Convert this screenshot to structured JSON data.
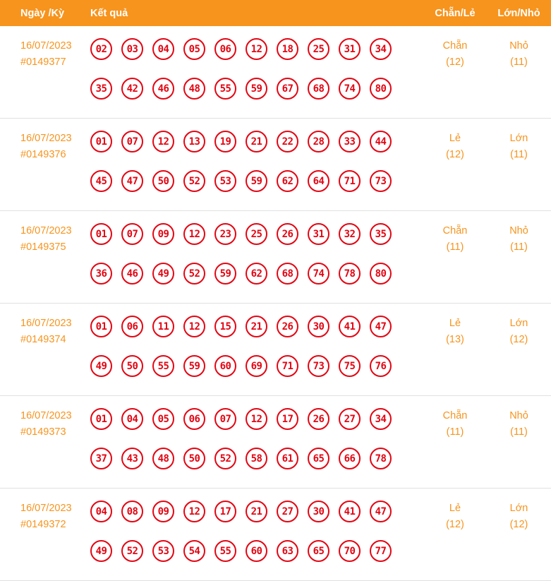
{
  "header": {
    "col_date": "Ngày /Kỳ",
    "col_result": "Kết quả",
    "col_parity": "Chẵn/Lẻ",
    "col_size": "Lớn/Nhỏ"
  },
  "colors": {
    "header_bg": "#F7941D",
    "accent_orange": "#F7941D",
    "ball_red": "#E30613",
    "separator": "#E0E0E0"
  },
  "rows": [
    {
      "date": "16/07/2023",
      "draw_id": "#0149377",
      "numbers_line1": [
        "02",
        "03",
        "04",
        "05",
        "06",
        "12",
        "18",
        "25",
        "31",
        "34"
      ],
      "numbers_line2": [
        "35",
        "42",
        "46",
        "48",
        "55",
        "59",
        "67",
        "68",
        "74",
        "80"
      ],
      "parity_label": "Chẵn",
      "parity_count": "(12)",
      "size_label": "Nhỏ",
      "size_count": "(11)"
    },
    {
      "date": "16/07/2023",
      "draw_id": "#0149376",
      "numbers_line1": [
        "01",
        "07",
        "12",
        "13",
        "19",
        "21",
        "22",
        "28",
        "33",
        "44"
      ],
      "numbers_line2": [
        "45",
        "47",
        "50",
        "52",
        "53",
        "59",
        "62",
        "64",
        "71",
        "73"
      ],
      "parity_label": "Lẻ",
      "parity_count": "(12)",
      "size_label": "Lớn",
      "size_count": "(11)"
    },
    {
      "date": "16/07/2023",
      "draw_id": "#0149375",
      "numbers_line1": [
        "01",
        "07",
        "09",
        "12",
        "23",
        "25",
        "26",
        "31",
        "32",
        "35"
      ],
      "numbers_line2": [
        "36",
        "46",
        "49",
        "52",
        "59",
        "62",
        "68",
        "74",
        "78",
        "80"
      ],
      "parity_label": "Chẵn",
      "parity_count": "(11)",
      "size_label": "Nhỏ",
      "size_count": "(11)"
    },
    {
      "date": "16/07/2023",
      "draw_id": "#0149374",
      "numbers_line1": [
        "01",
        "06",
        "11",
        "12",
        "15",
        "21",
        "26",
        "30",
        "41",
        "47"
      ],
      "numbers_line2": [
        "49",
        "50",
        "55",
        "59",
        "60",
        "69",
        "71",
        "73",
        "75",
        "76"
      ],
      "parity_label": "Lẻ",
      "parity_count": "(13)",
      "size_label": "Lớn",
      "size_count": "(12)"
    },
    {
      "date": "16/07/2023",
      "draw_id": "#0149373",
      "numbers_line1": [
        "01",
        "04",
        "05",
        "06",
        "07",
        "12",
        "17",
        "26",
        "27",
        "34"
      ],
      "numbers_line2": [
        "37",
        "43",
        "48",
        "50",
        "52",
        "58",
        "61",
        "65",
        "66",
        "78"
      ],
      "parity_label": "Chẵn",
      "parity_count": "(11)",
      "size_label": "Nhỏ",
      "size_count": "(11)"
    },
    {
      "date": "16/07/2023",
      "draw_id": "#0149372",
      "numbers_line1": [
        "04",
        "08",
        "09",
        "12",
        "17",
        "21",
        "27",
        "30",
        "41",
        "47"
      ],
      "numbers_line2": [
        "49",
        "52",
        "53",
        "54",
        "55",
        "60",
        "63",
        "65",
        "70",
        "77"
      ],
      "parity_label": "Lẻ",
      "parity_count": "(12)",
      "size_label": "Lớn",
      "size_count": "(12)"
    }
  ]
}
